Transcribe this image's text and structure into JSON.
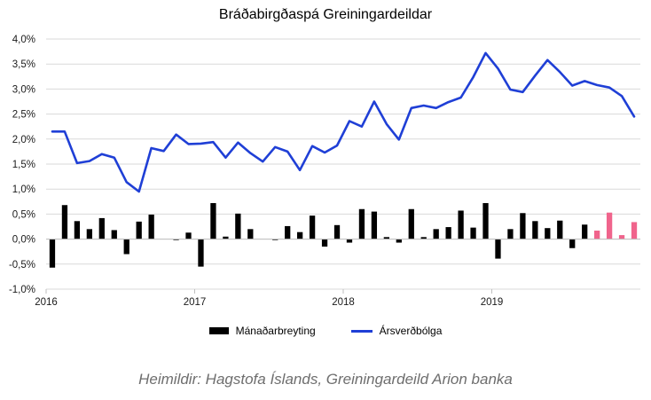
{
  "chart_data": {
    "type": "bar+line",
    "title": "Bráðabirgðaspá Greiningardeildar",
    "ylim": [
      -1.0,
      4.0
    ],
    "y_ticks": [
      "-1,0%",
      "-0,5%",
      "0,0%",
      "0,5%",
      "1,0%",
      "1,5%",
      "2,0%",
      "2,5%",
      "3,0%",
      "3,5%",
      "4,0%"
    ],
    "y_tick_values": [
      -1.0,
      -0.5,
      0.0,
      0.5,
      1.0,
      1.5,
      2.0,
      2.5,
      3.0,
      3.5,
      4.0
    ],
    "x_ticks": [
      "2016",
      "2017",
      "2018",
      "2019"
    ],
    "x_tick_positions": [
      0,
      12,
      24,
      36
    ],
    "grid": "horizontal",
    "legend_position": "bottom",
    "colors": {
      "bars": "#000000",
      "bars_forecast": "#f0648c",
      "line": "#1f3fd6",
      "grid": "#d9d9d9"
    },
    "series": [
      {
        "name": "Mánaðarbreyting",
        "kind": "bar",
        "values": [
          -0.57,
          0.68,
          0.36,
          0.2,
          0.42,
          0.18,
          -0.3,
          0.35,
          0.49,
          0.0,
          -0.02,
          0.13,
          -0.55,
          0.72,
          0.05,
          0.51,
          0.2,
          0.0,
          -0.02,
          0.26,
          0.14,
          0.47,
          -0.15,
          0.28,
          -0.07,
          0.6,
          0.55,
          0.04,
          -0.07,
          0.6,
          0.04,
          0.2,
          0.24,
          0.57,
          0.23,
          0.72,
          -0.39,
          0.2,
          0.52,
          0.36,
          0.22,
          0.37,
          -0.18,
          0.29,
          0.17,
          0.53,
          0.08,
          0.34
        ],
        "forecast_from_index": 44
      },
      {
        "name": "Ársverðbólga",
        "kind": "line",
        "values": [
          2.15,
          2.15,
          1.52,
          1.56,
          1.7,
          1.63,
          1.14,
          0.95,
          1.82,
          1.76,
          2.09,
          1.9,
          1.91,
          1.94,
          1.63,
          1.93,
          1.72,
          1.55,
          1.84,
          1.75,
          1.38,
          1.86,
          1.73,
          1.87,
          2.36,
          2.25,
          2.75,
          2.3,
          1.99,
          2.62,
          2.67,
          2.62,
          2.74,
          2.83,
          3.24,
          3.72,
          3.41,
          2.99,
          2.94,
          3.27,
          3.58,
          3.34,
          3.07,
          3.16,
          3.08,
          3.03,
          2.86,
          2.45
        ]
      }
    ],
    "source": "Heimildir: Hagstofa Íslands, Greiningardeild Arion banka"
  }
}
